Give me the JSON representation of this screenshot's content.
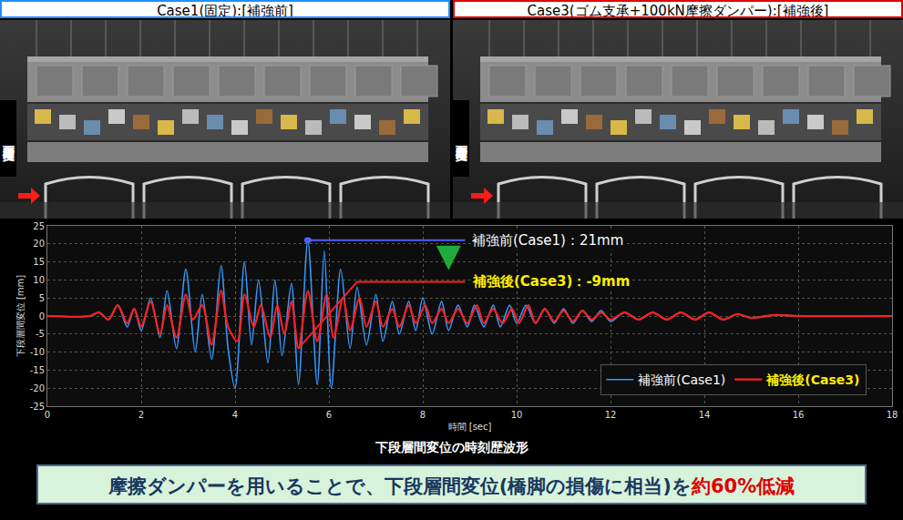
{
  "panels": [
    {
      "header": "Case1(固定):[補強前]",
      "side_label": "下段層間変位",
      "color": "#1e90ff"
    },
    {
      "header": "Case3(ゴム支承+100kN摩擦ダンパー):[補強後]",
      "side_label": "下段層間変位",
      "color": "#e00000"
    }
  ],
  "chart_data": {
    "type": "line",
    "title": "下段層間変位の時刻歴波形",
    "x_label": "時間 [sec]",
    "y_label": "下段層間変位 [mm]",
    "xlim": [
      0,
      18
    ],
    "xticks": [
      0,
      2,
      4,
      6,
      8,
      10,
      12,
      14,
      16,
      18
    ],
    "ylim": [
      -25,
      25
    ],
    "yticks": [
      -25,
      -20,
      -15,
      -10,
      -5,
      0,
      5,
      10,
      15,
      20,
      25
    ],
    "grid": true,
    "legend": "lower right",
    "series": [
      {
        "name": "補強前(Case1)",
        "color": "#3399ff",
        "x": [
          0,
          0.9,
          1.1,
          1.3,
          1.5,
          1.7,
          1.85,
          2.0,
          2.2,
          2.4,
          2.55,
          2.75,
          2.95,
          3.15,
          3.3,
          3.5,
          3.7,
          3.85,
          4.0,
          4.2,
          4.35,
          4.5,
          4.7,
          4.85,
          5.0,
          5.2,
          5.35,
          5.55,
          5.75,
          5.9,
          6.05,
          6.25,
          6.45,
          6.6,
          6.8,
          7.0,
          7.15,
          7.35,
          7.5,
          7.7,
          7.85,
          8.0,
          8.2,
          8.4,
          8.55,
          8.75,
          8.95,
          9.1,
          9.3,
          9.5,
          9.65,
          9.85,
          10.0,
          10.2,
          10.4,
          10.6,
          10.8,
          11.0,
          11.2,
          11.4,
          11.6,
          11.8,
          12.0,
          12.3,
          12.6,
          12.9,
          13.2,
          13.5,
          13.8,
          14.1,
          14.4,
          14.7,
          15.0,
          15.5,
          16.0,
          18.0
        ],
        "values": [
          0,
          0,
          1,
          -1,
          3,
          -3,
          2,
          -4,
          5,
          -6,
          7,
          -9,
          13,
          -10,
          6,
          -12,
          14,
          -9,
          -20,
          15,
          -8,
          10,
          -13,
          10,
          -11,
          9,
          -19,
          21,
          -19,
          18,
          -20,
          13,
          -9,
          8,
          -8,
          6,
          -7,
          4,
          -5,
          4,
          -4,
          5,
          -5,
          4,
          -4,
          3,
          -3,
          3,
          -3,
          3,
          -3,
          3,
          -2,
          3,
          -2,
          2,
          -2,
          2,
          -2,
          1.5,
          -1.5,
          1.5,
          -1.5,
          1,
          -1,
          1,
          -1,
          1,
          -1,
          1,
          -1,
          0.5,
          -0.5,
          0.3,
          0,
          0
        ]
      },
      {
        "name": "補強後(Case3)",
        "color": "#ff2020",
        "x": [
          0,
          0.9,
          1.1,
          1.3,
          1.5,
          1.7,
          1.85,
          2.0,
          2.2,
          2.4,
          2.55,
          2.75,
          2.95,
          3.1,
          3.3,
          3.5,
          3.7,
          3.85,
          4.05,
          4.2,
          4.4,
          4.55,
          4.75,
          4.9,
          5.05,
          5.2,
          5.35,
          5.55,
          5.75,
          5.95,
          6.1,
          6.3,
          6.45,
          6.65,
          6.8,
          7.0,
          7.15,
          7.35,
          7.5,
          7.7,
          7.85,
          8.05,
          8.2,
          8.4,
          8.55,
          8.75,
          8.95,
          9.15,
          9.3,
          9.5,
          9.7,
          9.9,
          10.05,
          10.25,
          10.4,
          10.6,
          10.8,
          11.0,
          11.2,
          11.4,
          11.6,
          11.8,
          12.0,
          12.3,
          12.6,
          12.9,
          13.2,
          13.5,
          13.8,
          14.1,
          14.4,
          14.7,
          15.0,
          15.5,
          16.0,
          18.0
        ],
        "values": [
          0,
          0,
          1,
          -1,
          3,
          -2,
          2,
          -3,
          4,
          -5,
          3,
          -6,
          6,
          -1,
          3,
          -8,
          7,
          -3,
          -7,
          6,
          -3,
          3,
          -6,
          3,
          -5,
          4,
          -9,
          7,
          -7,
          6,
          -6,
          5,
          -4,
          5,
          -3,
          4,
          -3,
          2,
          -3,
          3,
          -2,
          3,
          -2,
          2,
          -2,
          2,
          -2,
          3,
          -2,
          2,
          -2,
          2,
          -2,
          3,
          -2,
          2,
          -1.5,
          1.5,
          -1.5,
          1.5,
          -1,
          1,
          -1,
          1,
          -1,
          1,
          -1,
          1,
          -1,
          1,
          -1,
          0.5,
          -0.5,
          0.3,
          0,
          0
        ]
      }
    ],
    "annotations": [
      {
        "text": "補強前(Case1)：21mm",
        "x": 5.55,
        "y": 21,
        "color": "#ffffff"
      },
      {
        "text": "補強後(Case3)：-9mm",
        "x": 5.35,
        "y": -9,
        "color": "#ffee00"
      }
    ]
  },
  "conclusion": {
    "text": "摩擦ダンパーを用いることで、下段層間変位(橋脚の損傷に相当)を",
    "emphasis": "約60%低減"
  }
}
